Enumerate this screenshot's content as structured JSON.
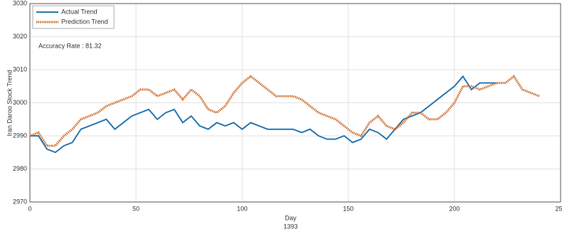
{
  "chart_data": {
    "type": "line",
    "xlabel": "Day",
    "xlabel2": "1393",
    "ylabel": "Iran Daroo Stock Trend",
    "annotation": "Accuracy Rate : 81.32",
    "x": [
      0,
      4,
      8,
      12,
      16,
      20,
      24,
      28,
      32,
      36,
      40,
      44,
      48,
      52,
      56,
      60,
      64,
      68,
      72,
      76,
      80,
      84,
      88,
      92,
      96,
      100,
      104,
      108,
      112,
      116,
      120,
      124,
      128,
      132,
      136,
      140,
      144,
      148,
      152,
      156,
      160,
      164,
      168,
      172,
      176,
      180,
      184,
      188,
      192,
      196,
      200,
      204,
      208,
      212,
      216,
      220,
      224,
      228,
      232,
      236,
      240
    ],
    "series": [
      {
        "name": "Actual Trend",
        "color": "#2777b0",
        "style": "solid",
        "values": [
          2990,
          2990,
          2986,
          2985,
          2987,
          2988,
          2992,
          2993,
          2994,
          2995,
          2992,
          2994,
          2996,
          2997,
          2998,
          2995,
          2997,
          2998,
          2994,
          2996,
          2993,
          2992,
          2994,
          2993,
          2994,
          2992,
          2994,
          2993,
          2992,
          2992,
          2992,
          2992,
          2991,
          2992,
          2990,
          2989,
          2989,
          2990,
          2988,
          2989,
          2992,
          2991,
          2989,
          2992,
          2995,
          2996,
          2997,
          2999,
          3001,
          3003,
          3005,
          3008,
          3004,
          3006,
          3006,
          3006,
          null,
          null,
          null,
          null,
          null
        ]
      },
      {
        "name": "Prediction Trend",
        "color": "#d06a28",
        "style": "dotted",
        "values": [
          2990,
          2991,
          2987,
          2987,
          2990,
          2992,
          2995,
          2996,
          2997,
          2999,
          3000,
          3001,
          3002,
          3004,
          3004,
          3002,
          3003,
          3004,
          3001,
          3004,
          3002,
          2998,
          2997,
          2999,
          3003,
          3006,
          3008,
          3006,
          3004,
          3002,
          3002,
          3002,
          3001,
          2999,
          2997,
          2996,
          2995,
          2993,
          2991,
          2990,
          2994,
          2996,
          2993,
          2992,
          2994,
          2997,
          2997,
          2995,
          2995,
          2997,
          3000,
          3005,
          3005,
          3004,
          3005,
          3006,
          3006,
          3008,
          3004,
          3003,
          3002
        ]
      }
    ],
    "xlim": [
      0,
      250
    ],
    "xticks": [
      0,
      50,
      100,
      150,
      200,
      250
    ],
    "ylim": [
      2970,
      3030
    ],
    "yticks": [
      2970,
      2980,
      2990,
      3000,
      3010,
      3020,
      3030
    ],
    "grid": true,
    "legend": "upper left"
  }
}
